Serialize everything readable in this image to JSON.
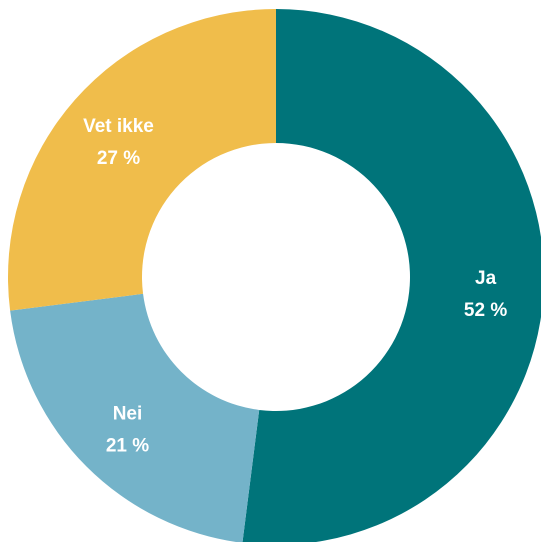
{
  "chart_data": {
    "type": "pie",
    "donut": true,
    "categories": [
      "Ja",
      "Nei",
      "Vet ikke"
    ],
    "values": [
      52,
      21,
      27
    ],
    "value_labels": [
      "52 %",
      "21 %",
      "27 %"
    ],
    "colors": [
      "#00747a",
      "#74b3c9",
      "#f0bd4b"
    ],
    "legend": "none"
  }
}
